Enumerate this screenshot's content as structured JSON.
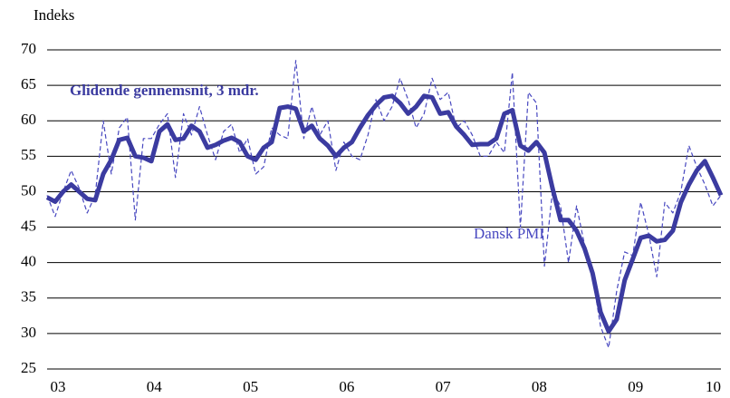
{
  "chart_data": {
    "type": "line",
    "y_label": "Indeks",
    "categories": [
      "03",
      null,
      null,
      null,
      null,
      null,
      null,
      null,
      null,
      null,
      null,
      null,
      "04",
      null,
      null,
      null,
      null,
      null,
      null,
      null,
      null,
      null,
      null,
      null,
      "05",
      null,
      null,
      null,
      null,
      null,
      null,
      null,
      null,
      null,
      null,
      null,
      "06",
      null,
      null,
      null,
      null,
      null,
      null,
      null,
      null,
      null,
      null,
      null,
      "07",
      null,
      null,
      null,
      null,
      null,
      null,
      null,
      null,
      null,
      null,
      null,
      "08",
      null,
      null,
      null,
      null,
      null,
      null,
      null,
      null,
      null,
      null,
      null,
      "09",
      null,
      null,
      null,
      null,
      null,
      null,
      null,
      null,
      null,
      null,
      null,
      "10"
    ],
    "series": [
      {
        "name": "Dansk PMI",
        "color": "#4848c0",
        "dashed": true,
        "values": [
          49.5,
          46.5,
          50,
          53,
          50.5,
          47,
          49.5,
          60,
          52.5,
          59,
          60.5,
          46,
          57.5,
          57.5,
          59.5,
          61,
          52,
          61,
          58,
          62,
          58,
          54.5,
          58.5,
          59.5,
          55.5,
          57.5,
          52.5,
          53.5,
          59,
          58,
          57.5,
          68.5,
          57.5,
          62,
          58,
          60,
          53,
          57,
          55,
          54.5,
          58,
          63,
          60,
          62,
          66,
          63,
          59,
          61,
          66,
          63,
          64,
          59,
          60,
          58,
          55,
          55,
          57,
          55.5,
          66.8,
          45,
          64,
          62.5,
          39.5,
          50,
          48,
          40,
          48,
          42.5,
          38,
          31,
          28,
          36,
          41.5,
          41,
          48.5,
          44,
          38,
          48.5,
          47,
          50,
          56.5,
          53.5,
          51,
          48,
          49.5
        ]
      },
      {
        "name": "Glidende gennemsnit, 3 mdr.",
        "color": "#3b3ba0",
        "dashed": false,
        "values": [
          49.2,
          48.6,
          50,
          51,
          50,
          49,
          48.8,
          52.5,
          54.5,
          57.3,
          57.6,
          55,
          54.8,
          54.3,
          58.5,
          59.5,
          57.3,
          57.5,
          59.3,
          58.5,
          56.2,
          56.6,
          57.2,
          57.6,
          57,
          55,
          54.5,
          56.2,
          57,
          61.8,
          62,
          61.7,
          58.5,
          59.3,
          57.5,
          56.5,
          55,
          56.2,
          57,
          59,
          60.8,
          62.2,
          63.3,
          63.5,
          62.5,
          61,
          62,
          63.5,
          63.3,
          61,
          61.2,
          59.2,
          58,
          56.6,
          56.7,
          56.7,
          57.5,
          61,
          61.5,
          56.5,
          55.8,
          57,
          55.5,
          50.5,
          46,
          46,
          44.5,
          42,
          38.5,
          33,
          30.3,
          32,
          37.5,
          40.5,
          43.5,
          43.8,
          43,
          43.2,
          44.5,
          48.5,
          51,
          53,
          54.3,
          52,
          49.5
        ]
      }
    ],
    "ylim": [
      25,
      70
    ],
    "yticks": [
      25,
      30,
      35,
      40,
      45,
      50,
      55,
      60,
      65,
      70
    ],
    "grid": true
  }
}
